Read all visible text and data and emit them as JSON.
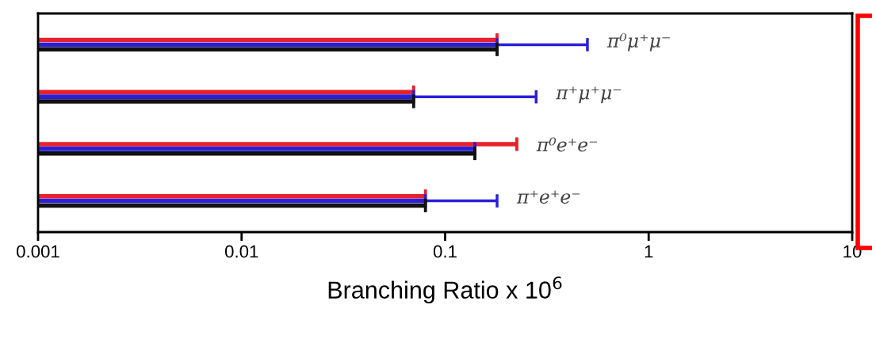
{
  "chart_data": {
    "type": "bar",
    "orientation": "horizontal",
    "log": "x",
    "xlabel": "Branching Ratio x 10$^{6}$",
    "categories": [
      "π⁰μ⁺μ⁻",
      "π⁺μ⁺μ⁻",
      "π⁰e⁺e⁻",
      "π⁺e⁺e⁻"
    ],
    "xlim": [
      0.001,
      10
    ],
    "xticks": [
      0.001,
      0.01,
      0.1,
      1,
      10
    ],
    "grid": false,
    "legend": false,
    "series": [
      {
        "color": "#e8212b",
        "values": [
          0.18,
          0.07,
          0.225,
          0.08
        ],
        "errors": [
          [
            0.18,
            0.18
          ],
          [
            0.07,
            0.07
          ],
          [
            0.225,
            0.225
          ],
          [
            0.08,
            0.08
          ]
        ]
      },
      {
        "color": "#2a1fd8",
        "values": [
          0.18,
          0.07,
          0.14,
          0.08
        ],
        "errors": [
          [
            0.18,
            0.5
          ],
          [
            0.07,
            0.28
          ],
          [
            0.14,
            0.14
          ],
          [
            0.08,
            0.18
          ]
        ]
      },
      {
        "color": "#111111",
        "values": [
          0.18,
          0.07,
          0.14,
          0.08
        ],
        "errors": [
          [
            0.18,
            0.18
          ],
          [
            0.07,
            0.07
          ],
          [
            0.14,
            0.14
          ],
          [
            0.08,
            0.08
          ]
        ]
      }
    ]
  }
}
